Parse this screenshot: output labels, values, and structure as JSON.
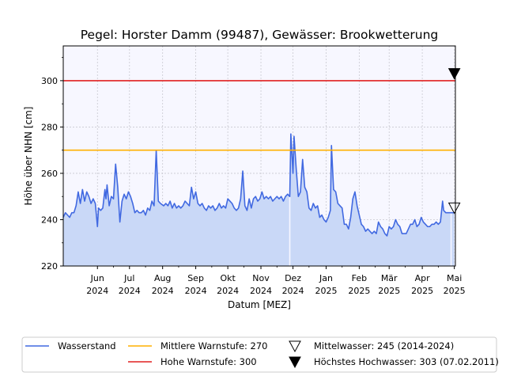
{
  "chart_data": {
    "type": "line",
    "title": "Pegel:  Horster Damm (99487), Gewässer:  Brookwetterung",
    "xlabel": "Datum [MEZ]",
    "ylabel": "Höhe über NHN [cm]",
    "ylim": [
      220,
      315
    ],
    "xlim": [
      "2024-04-30",
      "2025-05-02"
    ],
    "grid": true,
    "y_ticks": [
      220,
      240,
      260,
      280,
      300
    ],
    "x_ticks": [
      {
        "date": "2024-06-01",
        "line1": "Jun",
        "line2": "2024"
      },
      {
        "date": "2024-07-01",
        "line1": "Jul",
        "line2": "2024"
      },
      {
        "date": "2024-08-01",
        "line1": "Aug",
        "line2": "2024"
      },
      {
        "date": "2024-09-01",
        "line1": "Sep",
        "line2": "2024"
      },
      {
        "date": "2024-10-01",
        "line1": "Okt",
        "line2": "2024"
      },
      {
        "date": "2024-11-01",
        "line1": "Nov",
        "line2": "2024"
      },
      {
        "date": "2024-12-01",
        "line1": "Dez",
        "line2": "2024"
      },
      {
        "date": "2025-01-01",
        "line1": "Jan",
        "line2": "2025"
      },
      {
        "date": "2025-02-01",
        "line1": "Feb",
        "line2": "2025"
      },
      {
        "date": "2025-03-01",
        "line1": "Mär",
        "line2": "2025"
      },
      {
        "date": "2025-04-01",
        "line1": "Apr",
        "line2": "2025"
      },
      {
        "date": "2025-05-01",
        "line1": "Mai",
        "line2": "2025"
      }
    ],
    "series": [
      {
        "name": "Wasserstand",
        "color": "#4169e1",
        "fill_color": "#c9d8f7",
        "points": [
          [
            "2024-04-30",
            241
          ],
          [
            "2024-05-02",
            243
          ],
          [
            "2024-05-04",
            242
          ],
          [
            "2024-05-06",
            241
          ],
          [
            "2024-05-08",
            243
          ],
          [
            "2024-05-10",
            243
          ],
          [
            "2024-05-12",
            246
          ],
          [
            "2024-05-14",
            252
          ],
          [
            "2024-05-16",
            247
          ],
          [
            "2024-05-18",
            253
          ],
          [
            "2024-05-20",
            248
          ],
          [
            "2024-05-22",
            252
          ],
          [
            "2024-05-24",
            250
          ],
          [
            "2024-05-26",
            247
          ],
          [
            "2024-05-28",
            249
          ],
          [
            "2024-05-30",
            247
          ],
          [
            "2024-06-01",
            237
          ],
          [
            "2024-06-02",
            245
          ],
          [
            "2024-06-04",
            244
          ],
          [
            "2024-06-06",
            245
          ],
          [
            "2024-06-08",
            253
          ],
          [
            "2024-06-09",
            249
          ],
          [
            "2024-06-10",
            255
          ],
          [
            "2024-06-12",
            246
          ],
          [
            "2024-06-14",
            250
          ],
          [
            "2024-06-16",
            249
          ],
          [
            "2024-06-18",
            264
          ],
          [
            "2024-06-20",
            254
          ],
          [
            "2024-06-22",
            239
          ],
          [
            "2024-06-24",
            248
          ],
          [
            "2024-06-26",
            251
          ],
          [
            "2024-06-28",
            249
          ],
          [
            "2024-06-30",
            252
          ],
          [
            "2024-07-02",
            250
          ],
          [
            "2024-07-04",
            247
          ],
          [
            "2024-07-06",
            243
          ],
          [
            "2024-07-08",
            244
          ],
          [
            "2024-07-10",
            243
          ],
          [
            "2024-07-12",
            243
          ],
          [
            "2024-07-14",
            244
          ],
          [
            "2024-07-16",
            242
          ],
          [
            "2024-07-18",
            245
          ],
          [
            "2024-07-20",
            244
          ],
          [
            "2024-07-22",
            248
          ],
          [
            "2024-07-24",
            246
          ],
          [
            "2024-07-26",
            270
          ],
          [
            "2024-07-28",
            248
          ],
          [
            "2024-07-30",
            247
          ],
          [
            "2024-08-02",
            246
          ],
          [
            "2024-08-04",
            247
          ],
          [
            "2024-08-06",
            246
          ],
          [
            "2024-08-08",
            248
          ],
          [
            "2024-08-10",
            245
          ],
          [
            "2024-08-12",
            247
          ],
          [
            "2024-08-14",
            245
          ],
          [
            "2024-08-16",
            246
          ],
          [
            "2024-08-18",
            245
          ],
          [
            "2024-08-20",
            246
          ],
          [
            "2024-08-22",
            248
          ],
          [
            "2024-08-24",
            247
          ],
          [
            "2024-08-26",
            246
          ],
          [
            "2024-08-28",
            254
          ],
          [
            "2024-08-30",
            249
          ],
          [
            "2024-09-01",
            252
          ],
          [
            "2024-09-03",
            247
          ],
          [
            "2024-09-05",
            246
          ],
          [
            "2024-09-07",
            247
          ],
          [
            "2024-09-09",
            245
          ],
          [
            "2024-09-11",
            244
          ],
          [
            "2024-09-13",
            246
          ],
          [
            "2024-09-15",
            245
          ],
          [
            "2024-09-17",
            246
          ],
          [
            "2024-09-19",
            244
          ],
          [
            "2024-09-21",
            245
          ],
          [
            "2024-09-23",
            247
          ],
          [
            "2024-09-25",
            245
          ],
          [
            "2024-09-27",
            246
          ],
          [
            "2024-09-29",
            245
          ],
          [
            "2024-10-01",
            249
          ],
          [
            "2024-10-03",
            248
          ],
          [
            "2024-10-05",
            247
          ],
          [
            "2024-10-07",
            245
          ],
          [
            "2024-10-09",
            244
          ],
          [
            "2024-10-11",
            245
          ],
          [
            "2024-10-13",
            249
          ],
          [
            "2024-10-15",
            261
          ],
          [
            "2024-10-17",
            246
          ],
          [
            "2024-10-19",
            244
          ],
          [
            "2024-10-21",
            249
          ],
          [
            "2024-10-23",
            245
          ],
          [
            "2024-10-25",
            249
          ],
          [
            "2024-10-27",
            250
          ],
          [
            "2024-10-29",
            248
          ],
          [
            "2024-10-31",
            249
          ],
          [
            "2024-11-02",
            252
          ],
          [
            "2024-11-04",
            249
          ],
          [
            "2024-11-06",
            250
          ],
          [
            "2024-11-08",
            249
          ],
          [
            "2024-11-10",
            250
          ],
          [
            "2024-11-12",
            248
          ],
          [
            "2024-11-14",
            249
          ],
          [
            "2024-11-16",
            250
          ],
          [
            "2024-11-18",
            249
          ],
          [
            "2024-11-20",
            250
          ],
          [
            "2024-11-22",
            248
          ],
          [
            "2024-11-24",
            250
          ],
          [
            "2024-11-26",
            251
          ],
          [
            "2024-11-28",
            250
          ],
          [
            "2024-11-29",
            277
          ],
          [
            "2024-12-01",
            260
          ],
          [
            "2024-12-02",
            276
          ],
          [
            "2024-12-04",
            262
          ],
          [
            "2024-12-06",
            250
          ],
          [
            "2024-12-08",
            252
          ],
          [
            "2024-12-10",
            266
          ],
          [
            "2024-12-12",
            254
          ],
          [
            "2024-12-14",
            252
          ],
          [
            "2024-12-16",
            245
          ],
          [
            "2024-12-18",
            244
          ],
          [
            "2024-12-20",
            247
          ],
          [
            "2024-12-22",
            245
          ],
          [
            "2024-12-24",
            246
          ],
          [
            "2024-12-26",
            241
          ],
          [
            "2024-12-28",
            242
          ],
          [
            "2024-12-30",
            240
          ],
          [
            "2025-01-01",
            239
          ],
          [
            "2025-01-03",
            241
          ],
          [
            "2025-01-05",
            244
          ],
          [
            "2025-01-06",
            272
          ],
          [
            "2025-01-08",
            253
          ],
          [
            "2025-01-10",
            252
          ],
          [
            "2025-01-12",
            247
          ],
          [
            "2025-01-14",
            246
          ],
          [
            "2025-01-16",
            245
          ],
          [
            "2025-01-18",
            238
          ],
          [
            "2025-01-20",
            238
          ],
          [
            "2025-01-22",
            236
          ],
          [
            "2025-01-24",
            241
          ],
          [
            "2025-01-26",
            249
          ],
          [
            "2025-01-28",
            252
          ],
          [
            "2025-01-30",
            246
          ],
          [
            "2025-02-01",
            242
          ],
          [
            "2025-02-03",
            238
          ],
          [
            "2025-02-05",
            237
          ],
          [
            "2025-02-07",
            235
          ],
          [
            "2025-02-09",
            236
          ],
          [
            "2025-02-11",
            235
          ],
          [
            "2025-02-13",
            234
          ],
          [
            "2025-02-15",
            235
          ],
          [
            "2025-02-17",
            234
          ],
          [
            "2025-02-19",
            239
          ],
          [
            "2025-02-21",
            237
          ],
          [
            "2025-02-23",
            236
          ],
          [
            "2025-02-25",
            234
          ],
          [
            "2025-02-27",
            233
          ],
          [
            "2025-03-01",
            237
          ],
          [
            "2025-03-03",
            236
          ],
          [
            "2025-03-05",
            237
          ],
          [
            "2025-03-07",
            240
          ],
          [
            "2025-03-09",
            238
          ],
          [
            "2025-03-11",
            237
          ],
          [
            "2025-03-13",
            234
          ],
          [
            "2025-03-15",
            234
          ],
          [
            "2025-03-17",
            234
          ],
          [
            "2025-03-19",
            236
          ],
          [
            "2025-03-21",
            238
          ],
          [
            "2025-03-23",
            238
          ],
          [
            "2025-03-25",
            240
          ],
          [
            "2025-03-27",
            237
          ],
          [
            "2025-03-29",
            238
          ],
          [
            "2025-03-31",
            241
          ],
          [
            "2025-04-02",
            239
          ],
          [
            "2025-04-04",
            238
          ],
          [
            "2025-04-06",
            237
          ],
          [
            "2025-04-08",
            237
          ],
          [
            "2025-04-10",
            238
          ],
          [
            "2025-04-12",
            238
          ],
          [
            "2025-04-14",
            239
          ],
          [
            "2025-04-16",
            238
          ],
          [
            "2025-04-18",
            239
          ],
          [
            "2025-04-20",
            248
          ],
          [
            "2025-04-21",
            244
          ],
          [
            "2025-04-23",
            243
          ],
          [
            "2025-04-25",
            243
          ],
          [
            "2025-04-27",
            243
          ],
          [
            "2025-04-29",
            243
          ],
          [
            "2025-05-01",
            243
          ]
        ]
      },
      {
        "name": "Mittlere Warnstufe: 270",
        "color": "#ffb000",
        "value": 270
      },
      {
        "name": "Hohe Warnstufe: 300",
        "color": "#e02020",
        "value": 300
      }
    ],
    "markers": [
      {
        "name": "Mittelwasser: 245 (2014-2024)",
        "date": "2025-05-01",
        "value": 245,
        "style": "open-triangle-down"
      },
      {
        "name": "Höchstes Hochwasser: 303 (07.02.2011)",
        "date": "2025-05-01",
        "value": 303,
        "style": "filled-triangle-down"
      }
    ],
    "legend_placement": "bottom"
  }
}
